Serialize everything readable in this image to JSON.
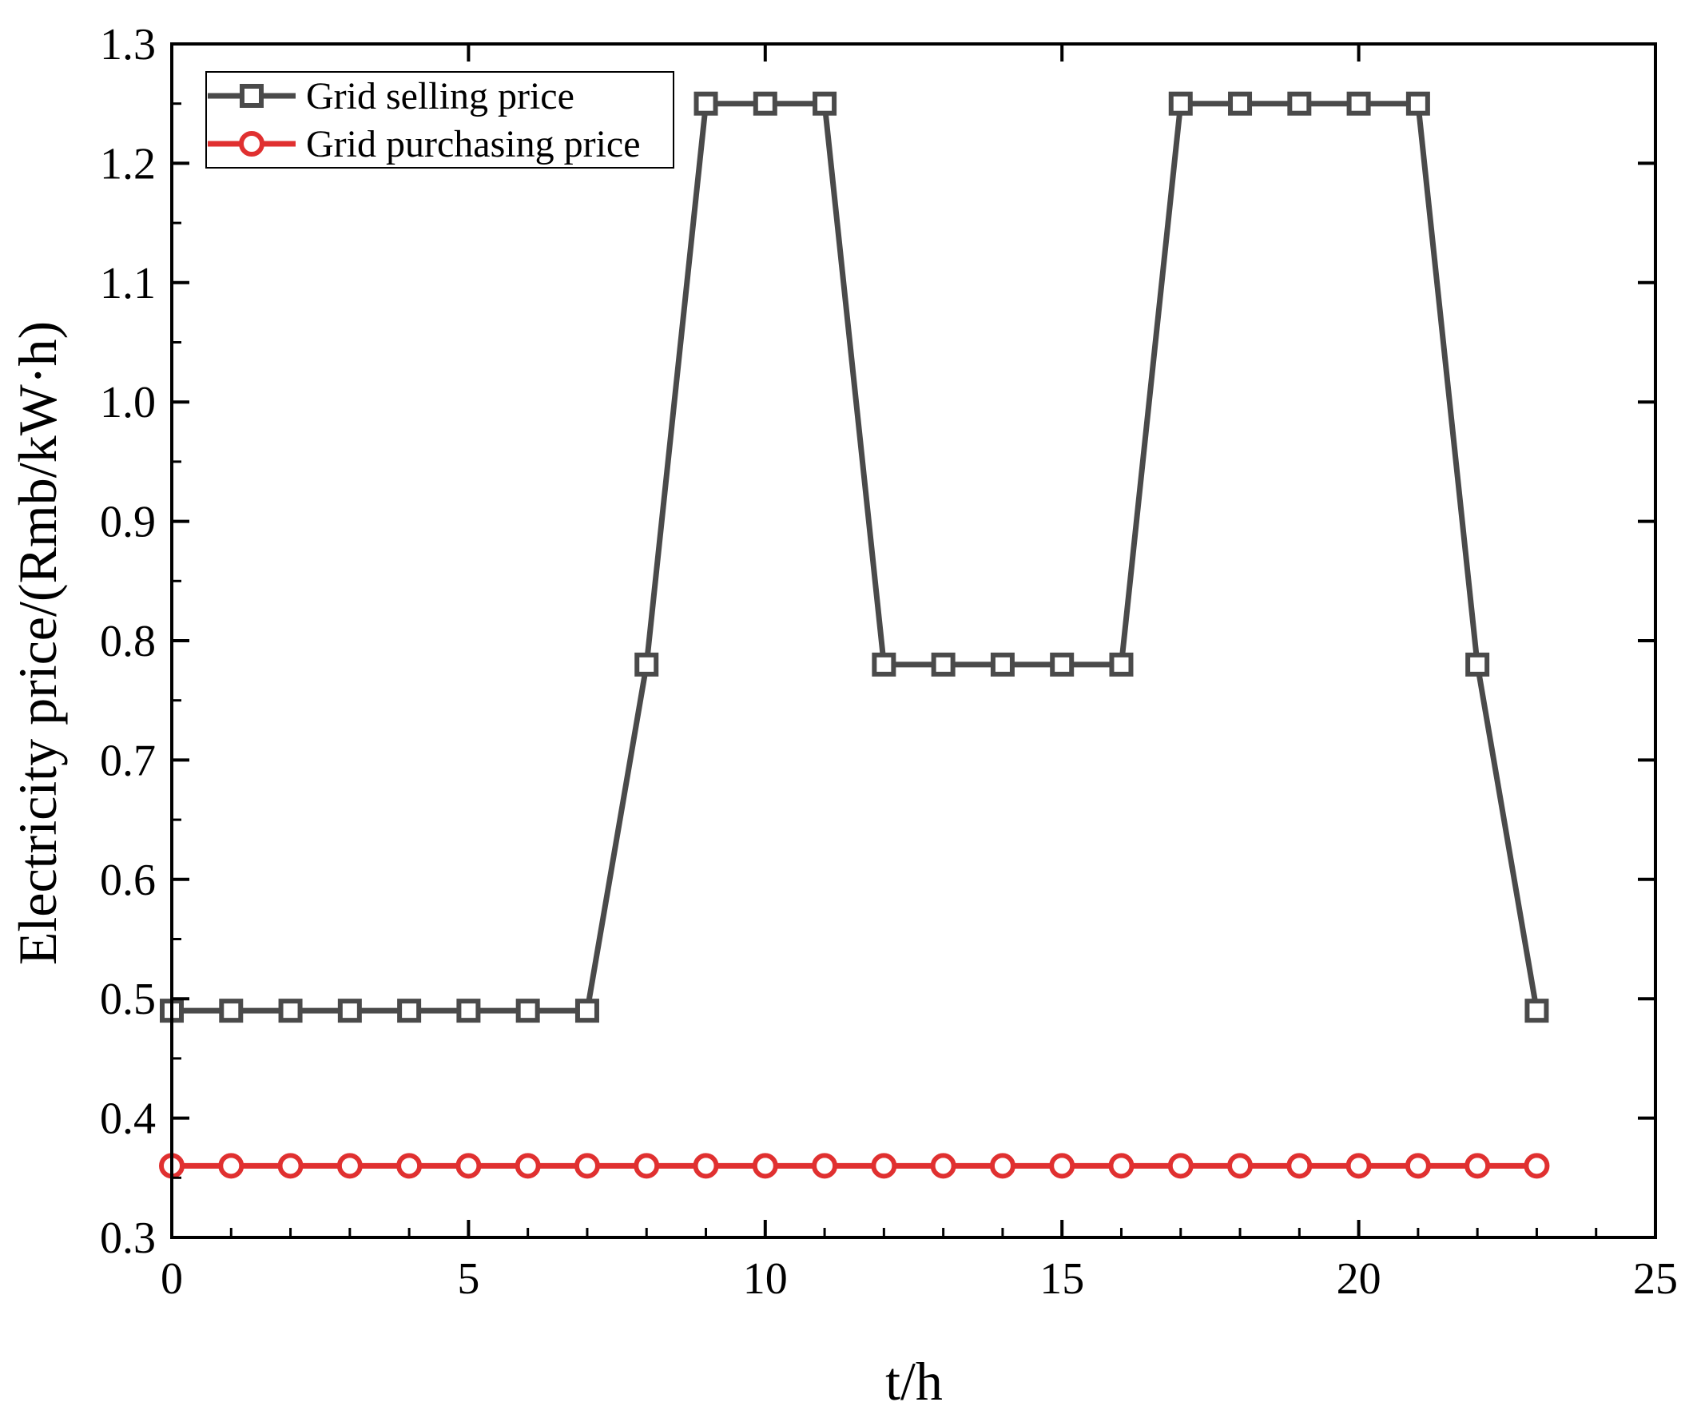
{
  "chart_data": {
    "type": "line",
    "title": "",
    "xlabel": "t/h",
    "ylabel": "Electricity price/(Rmb/kW·h)",
    "xlim": [
      0,
      25
    ],
    "ylim": [
      0.3,
      1.3
    ],
    "xticks": [
      0,
      5,
      10,
      15,
      20,
      25
    ],
    "xtick_labels": [
      "0",
      "5",
      "10",
      "15",
      "20",
      "25"
    ],
    "yticks": [
      0.3,
      0.4,
      0.5,
      0.6,
      0.7,
      0.8,
      0.9,
      1.0,
      1.1,
      1.2,
      1.3
    ],
    "ytick_labels": [
      "0.3",
      "0.4",
      "0.5",
      "0.6",
      "0.7",
      "0.8",
      "0.9",
      "1.0",
      "1.1",
      "1.2",
      "1.3"
    ],
    "grid": false,
    "legend_position": "top-left",
    "x": [
      0,
      1,
      2,
      3,
      4,
      5,
      6,
      7,
      8,
      9,
      10,
      11,
      12,
      13,
      14,
      15,
      16,
      17,
      18,
      19,
      20,
      21,
      22,
      23
    ],
    "series": [
      {
        "name": "Grid selling price",
        "color": "#4a4a4a",
        "marker": "square",
        "values": [
          0.49,
          0.49,
          0.49,
          0.49,
          0.49,
          0.49,
          0.49,
          0.49,
          0.78,
          1.25,
          1.25,
          1.25,
          0.78,
          0.78,
          0.78,
          0.78,
          0.78,
          1.25,
          1.25,
          1.25,
          1.25,
          1.25,
          0.78,
          0.49
        ]
      },
      {
        "name": "Grid purchasing price",
        "color": "#e03030",
        "marker": "circle",
        "values": [
          0.36,
          0.36,
          0.36,
          0.36,
          0.36,
          0.36,
          0.36,
          0.36,
          0.36,
          0.36,
          0.36,
          0.36,
          0.36,
          0.36,
          0.36,
          0.36,
          0.36,
          0.36,
          0.36,
          0.36,
          0.36,
          0.36,
          0.36,
          0.36
        ]
      }
    ]
  }
}
